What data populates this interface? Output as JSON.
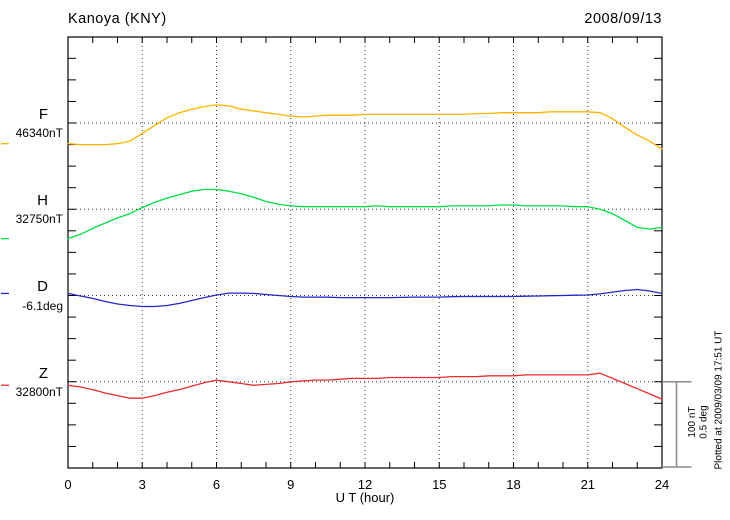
{
  "header": {
    "station_title": "Kanoya (KNY)",
    "date": "2008/09/13"
  },
  "x_axis": {
    "label": "U T (hour)",
    "tick_labels": [
      "0",
      "3",
      "6",
      "9",
      "12",
      "15",
      "18",
      "21",
      "24"
    ]
  },
  "scale_bar": {
    "line1": "100 nT",
    "line2": "0.5 deg"
  },
  "footer_note": "Plotted at 2009/03/09 17:51 UT",
  "style": {
    "axis_color": "#000000",
    "grid_color": "#3a3a3a",
    "scalebar_color": "#8a8a8a",
    "background": "#ffffff"
  },
  "chart_data": {
    "type": "line",
    "title": "Kanoya (KNY)",
    "date": "2008/09/13",
    "xlabel": "U T (hour)",
    "xlim": [
      0,
      24
    ],
    "x_major_ticks": [
      0,
      3,
      6,
      9,
      12,
      15,
      18,
      21,
      24
    ],
    "x_minor_tick_step_hours": 1,
    "x_start": 0,
    "x_step": 0.5,
    "grid": "dotted vertical lines every 3 hours; dotted horizontal baseline per trace",
    "scale_per_division": {
      "nT": 100,
      "deg": 0.5
    },
    "series": [
      {
        "name": "F",
        "letter": "F",
        "units": "nT",
        "base_label": "46340nT",
        "base_value": 46340,
        "color": "#FFB300",
        "values": [
          46316,
          46315,
          46315,
          46315,
          46316,
          46319,
          46328,
          46337,
          46346,
          46352,
          46356,
          46359,
          46361,
          46360,
          46356,
          46354,
          46352,
          46350,
          46348,
          46347,
          46348,
          46349,
          46349,
          46349,
          46350,
          46350,
          46350,
          46350,
          46350,
          46350,
          46350,
          46350,
          46350,
          46351,
          46351,
          46352,
          46352,
          46352,
          46352,
          46353,
          46353,
          46353,
          46353,
          46352,
          46345,
          46335,
          46326,
          46319,
          46310
        ]
      },
      {
        "name": "H",
        "letter": "H",
        "units": "nT",
        "base_label": "32750nT",
        "base_value": 32750,
        "color": "#00DD44",
        "values": [
          32716,
          32721,
          32728,
          32734,
          32740,
          32745,
          32752,
          32758,
          32763,
          32767,
          32771,
          32773,
          32773,
          32771,
          32768,
          32764,
          32759,
          32756,
          32754,
          32753,
          32753,
          32753,
          32753,
          32753,
          32753,
          32754,
          32753,
          32753,
          32753,
          32753,
          32753,
          32754,
          32754,
          32754,
          32754,
          32755,
          32755,
          32754,
          32754,
          32754,
          32754,
          32753,
          32753,
          32750,
          32745,
          32737,
          32729,
          32727,
          32729
        ]
      },
      {
        "name": "D",
        "letter": "D",
        "units": "deg",
        "base_label": "-6.1deg",
        "base_value": -6.1,
        "color": "#2525CC",
        "values": [
          -6.088,
          -6.103,
          -6.117,
          -6.135,
          -6.149,
          -6.158,
          -6.164,
          -6.164,
          -6.158,
          -6.146,
          -6.129,
          -6.112,
          -6.097,
          -6.086,
          -6.086,
          -6.088,
          -6.094,
          -6.1,
          -6.106,
          -6.109,
          -6.109,
          -6.11,
          -6.112,
          -6.112,
          -6.112,
          -6.112,
          -6.112,
          -6.111,
          -6.109,
          -6.109,
          -6.109,
          -6.107,
          -6.106,
          -6.106,
          -6.106,
          -6.106,
          -6.106,
          -6.104,
          -6.103,
          -6.101,
          -6.1,
          -6.098,
          -6.097,
          -6.091,
          -6.08,
          -6.071,
          -6.065,
          -6.074,
          -6.088
        ]
      },
      {
        "name": "Z",
        "letter": "Z",
        "units": "nT",
        "base_label": "32800nT",
        "base_value": 32800,
        "color": "#E82C2C",
        "values": [
          32796,
          32794,
          32791,
          32787,
          32784,
          32781,
          32781,
          32784,
          32788,
          32791,
          32795,
          32799,
          32802,
          32800,
          32798,
          32796,
          32797,
          32798,
          32800,
          32801,
          32802,
          32802,
          32803,
          32804,
          32804,
          32804,
          32805,
          32805,
          32805,
          32805,
          32805,
          32806,
          32806,
          32806,
          32807,
          32807,
          32807,
          32808,
          32808,
          32808,
          32808,
          32808,
          32808,
          32810,
          32804,
          32798,
          32792,
          32786,
          32780
        ]
      }
    ]
  }
}
